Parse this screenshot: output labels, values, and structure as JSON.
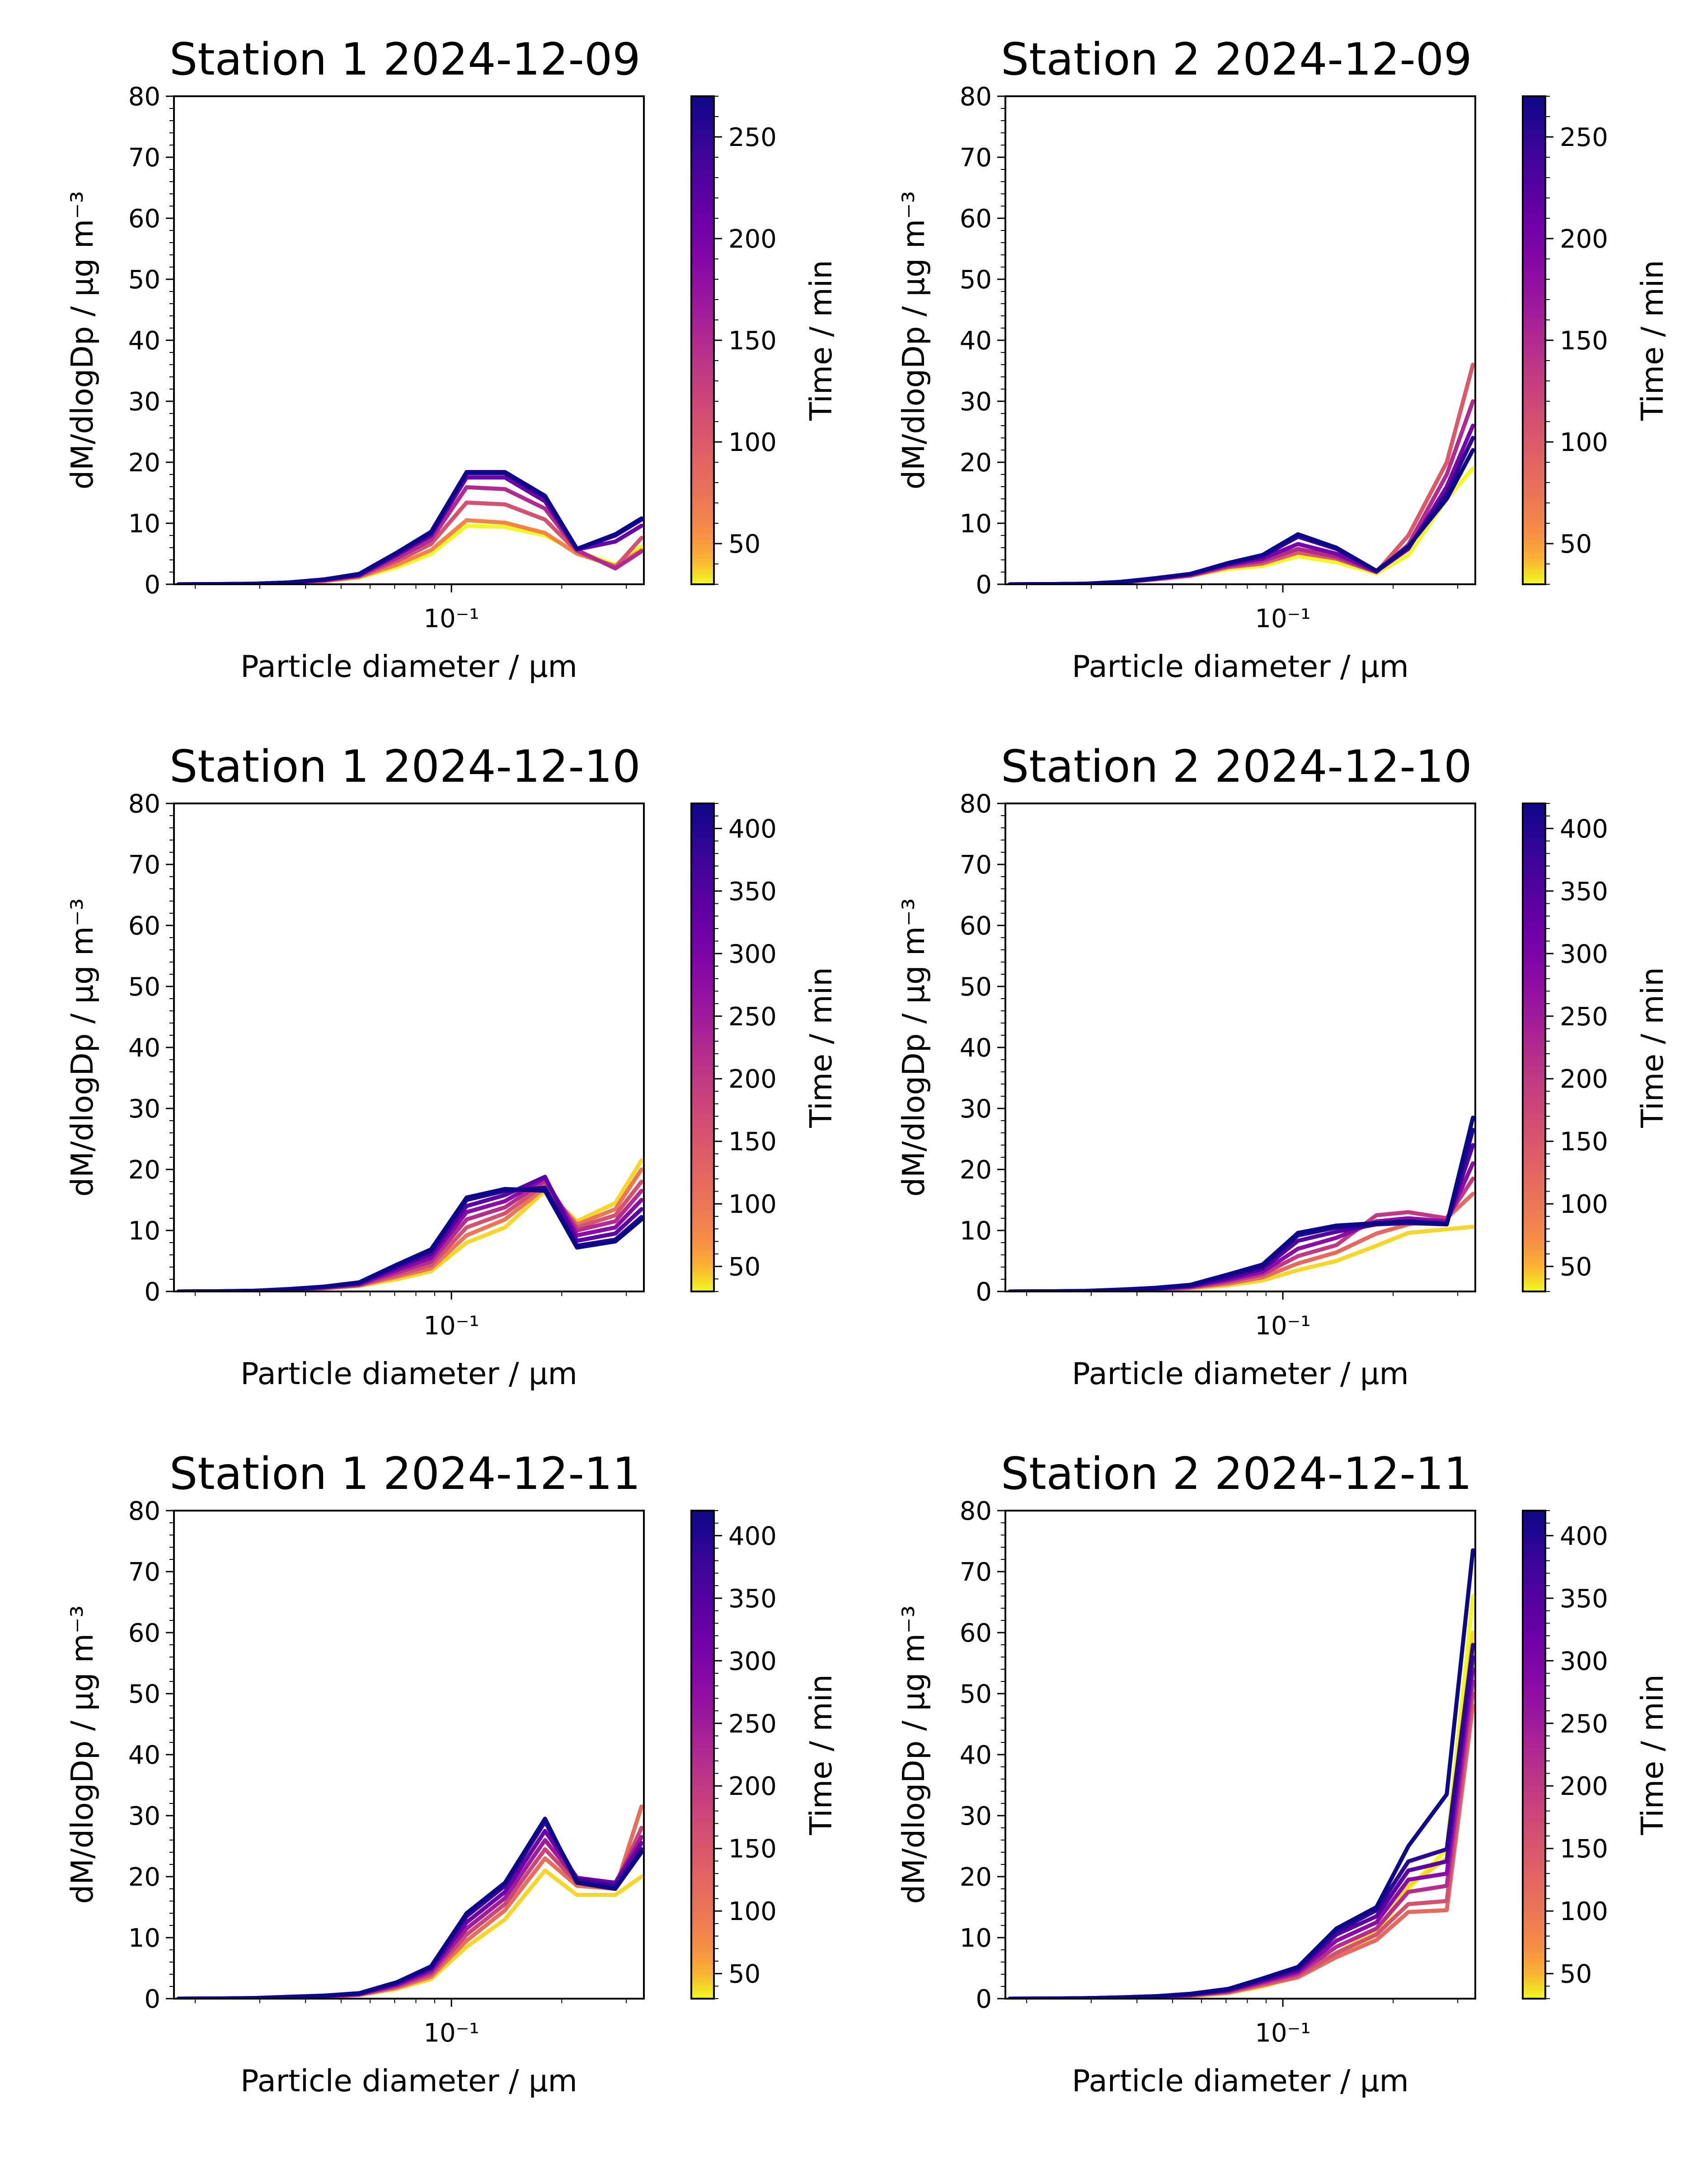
{
  "figure": {
    "background": "#ffffff",
    "colormap": "plasma"
  },
  "chart_data": [
    {
      "type": "line",
      "title": "Station 1 2024-12-09",
      "xlabel": "Particle diameter / μm",
      "ylabel": "dM/dlogDp / μg m⁻³",
      "xscale": "log",
      "xlim": [
        0.0175,
        0.335
      ],
      "ylim": [
        0,
        80
      ],
      "yticks": [
        0,
        10,
        20,
        30,
        40,
        50,
        60,
        70,
        80
      ],
      "xtick_label": "10⁻¹",
      "colorbar": {
        "label": "Time / min",
        "range": [
          30,
          270
        ],
        "ticks": [
          50,
          100,
          150,
          200,
          250
        ]
      },
      "x": [
        0.018,
        0.023,
        0.029,
        0.036,
        0.045,
        0.056,
        0.071,
        0.088,
        0.11,
        0.14,
        0.18,
        0.22,
        0.28,
        0.33
      ],
      "series": [
        {
          "time": 30,
          "values": [
            0,
            0.02,
            0.06,
            0.2,
            0.5,
            1.1,
            2.8,
            5.0,
            9.6,
            9.4,
            8.0,
            5.4,
            3.2,
            6.2
          ]
        },
        {
          "time": 60,
          "values": [
            0,
            0.02,
            0.06,
            0.2,
            0.5,
            1.2,
            3.2,
            5.6,
            10.5,
            10.1,
            8.4,
            5.0,
            3.0,
            5.6
          ]
        },
        {
          "time": 110,
          "values": [
            0,
            0.03,
            0.07,
            0.2,
            0.6,
            1.3,
            3.8,
            6.6,
            13.4,
            13.1,
            10.6,
            5.4,
            2.8,
            7.6
          ]
        },
        {
          "time": 150,
          "values": [
            0,
            0.03,
            0.08,
            0.3,
            0.7,
            1.4,
            4.3,
            7.3,
            15.9,
            15.6,
            12.4,
            5.6,
            2.6,
            5.4
          ]
        },
        {
          "time": 210,
          "values": [
            0,
            0.03,
            0.09,
            0.3,
            0.7,
            1.5,
            4.8,
            8.0,
            17.5,
            17.5,
            13.6,
            5.7,
            7.0,
            9.6
          ]
        },
        {
          "time": 255,
          "values": [
            0,
            0.03,
            0.1,
            0.3,
            0.8,
            1.6,
            5.1,
            8.4,
            18.2,
            18.2,
            14.3,
            5.8,
            8.0,
            10.6
          ]
        },
        {
          "time": 270,
          "values": [
            0,
            0.04,
            0.1,
            0.3,
            0.8,
            1.7,
            5.2,
            8.6,
            18.4,
            18.4,
            14.5,
            5.8,
            8.2,
            10.8
          ]
        }
      ]
    },
    {
      "type": "line",
      "title": "Station 2 2024-12-09",
      "xlabel": "Particle diameter / μm",
      "ylabel": "dM/dlogDp / μg m⁻³",
      "xscale": "log",
      "xlim": [
        0.0175,
        0.335
      ],
      "ylim": [
        0,
        80
      ],
      "yticks": [
        0,
        10,
        20,
        30,
        40,
        50,
        60,
        70,
        80
      ],
      "xtick_label": "10⁻¹",
      "colorbar": {
        "label": "Time / min",
        "range": [
          30,
          270
        ],
        "ticks": [
          50,
          100,
          150,
          200,
          250
        ]
      },
      "x": [
        0.018,
        0.023,
        0.029,
        0.036,
        0.045,
        0.056,
        0.071,
        0.088,
        0.11,
        0.14,
        0.18,
        0.22,
        0.28,
        0.33
      ],
      "series": [
        {
          "time": 30,
          "values": [
            0,
            0.02,
            0.08,
            0.3,
            0.8,
            1.4,
            2.5,
            3.0,
            4.6,
            3.6,
            1.8,
            4.8,
            14.0,
            19.0
          ]
        },
        {
          "time": 100,
          "values": [
            0,
            0.02,
            0.08,
            0.3,
            0.8,
            1.4,
            2.8,
            3.4,
            5.2,
            4.2,
            2.0,
            8.0,
            20.0,
            36.0
          ]
        },
        {
          "time": 150,
          "values": [
            0,
            0.02,
            0.09,
            0.3,
            0.9,
            1.5,
            3.0,
            3.8,
            5.8,
            4.5,
            2.0,
            6.5,
            18.0,
            30.0
          ]
        },
        {
          "time": 200,
          "values": [
            0,
            0.03,
            0.1,
            0.3,
            0.9,
            1.6,
            3.2,
            4.2,
            6.6,
            5.0,
            2.1,
            5.8,
            16.0,
            26.0
          ]
        },
        {
          "time": 250,
          "values": [
            0,
            0.03,
            0.1,
            0.3,
            1.0,
            1.7,
            3.4,
            4.6,
            7.8,
            5.8,
            2.2,
            6.0,
            15.0,
            24.0
          ]
        },
        {
          "time": 270,
          "values": [
            0,
            0.03,
            0.1,
            0.4,
            1.0,
            1.7,
            3.5,
            4.8,
            8.2,
            6.0,
            2.2,
            6.2,
            14.0,
            22.0
          ]
        }
      ]
    },
    {
      "type": "line",
      "title": "Station 1 2024-12-10",
      "xlabel": "Particle diameter / μm",
      "ylabel": "dM/dlogDp / μg m⁻³",
      "xscale": "log",
      "xlim": [
        0.0175,
        0.335
      ],
      "ylim": [
        0,
        80
      ],
      "yticks": [
        0,
        10,
        20,
        30,
        40,
        50,
        60,
        70,
        80
      ],
      "xtick_label": "10⁻¹",
      "colorbar": {
        "label": "Time / min",
        "range": [
          30,
          420
        ],
        "ticks": [
          50,
          100,
          150,
          200,
          250,
          300,
          350,
          400
        ]
      },
      "x": [
        0.018,
        0.023,
        0.029,
        0.036,
        0.045,
        0.056,
        0.071,
        0.088,
        0.11,
        0.14,
        0.18,
        0.22,
        0.28,
        0.33
      ],
      "series": [
        {
          "time": 40,
          "values": [
            0,
            0.02,
            0.06,
            0.2,
            0.5,
            0.9,
            2.0,
            3.3,
            8.0,
            10.5,
            16.5,
            11.5,
            14.5,
            21.5
          ]
        },
        {
          "time": 100,
          "values": [
            0,
            0.02,
            0.07,
            0.2,
            0.5,
            1.0,
            2.4,
            3.8,
            9.2,
            11.8,
            17.0,
            11.0,
            13.5,
            20.0
          ]
        },
        {
          "time": 160,
          "values": [
            0,
            0.02,
            0.08,
            0.2,
            0.6,
            1.0,
            2.7,
            4.3,
            10.5,
            12.8,
            17.6,
            10.5,
            12.5,
            18.0
          ]
        },
        {
          "time": 220,
          "values": [
            0,
            0.03,
            0.09,
            0.3,
            0.6,
            1.1,
            3.1,
            4.9,
            11.8,
            13.8,
            18.2,
            10.0,
            11.5,
            16.5
          ]
        },
        {
          "time": 280,
          "values": [
            0,
            0.03,
            0.1,
            0.3,
            0.7,
            1.2,
            3.5,
            5.5,
            13.0,
            14.8,
            18.6,
            9.2,
            10.5,
            15.0
          ]
        },
        {
          "time": 340,
          "values": [
            0,
            0.03,
            0.11,
            0.3,
            0.7,
            1.3,
            3.9,
            6.1,
            14.0,
            15.8,
            18.8,
            8.3,
            9.5,
            13.5
          ]
        },
        {
          "time": 400,
          "values": [
            0,
            0.03,
            0.12,
            0.3,
            0.8,
            1.4,
            4.2,
            6.6,
            15.0,
            16.5,
            17.0,
            7.5,
            8.5,
            12.2
          ]
        },
        {
          "time": 420,
          "values": [
            0,
            0.04,
            0.12,
            0.4,
            0.8,
            1.5,
            4.4,
            6.9,
            15.4,
            16.8,
            16.5,
            7.2,
            8.2,
            11.8
          ]
        }
      ]
    },
    {
      "type": "line",
      "title": "Station 2 2024-12-10",
      "xlabel": "Particle diameter / μm",
      "ylabel": "dM/dlogDp / μg m⁻³",
      "xscale": "log",
      "xlim": [
        0.0175,
        0.335
      ],
      "ylim": [
        0,
        80
      ],
      "yticks": [
        0,
        10,
        20,
        30,
        40,
        50,
        60,
        70,
        80
      ],
      "xtick_label": "10⁻¹",
      "colorbar": {
        "label": "Time / min",
        "range": [
          30,
          420
        ],
        "ticks": [
          50,
          100,
          150,
          200,
          250,
          300,
          350,
          400
        ]
      },
      "x": [
        0.018,
        0.023,
        0.029,
        0.036,
        0.045,
        0.056,
        0.071,
        0.088,
        0.11,
        0.14,
        0.18,
        0.22,
        0.28,
        0.33
      ],
      "series": [
        {
          "time": 40,
          "values": [
            0,
            0.01,
            0.04,
            0.1,
            0.3,
            0.5,
            1.0,
            1.8,
            3.5,
            5.0,
            7.5,
            9.6,
            10.2,
            10.6
          ]
        },
        {
          "time": 120,
          "values": [
            0,
            0.01,
            0.05,
            0.1,
            0.3,
            0.6,
            1.3,
            2.3,
            4.6,
            6.4,
            9.5,
            11.0,
            12.0,
            16.0
          ]
        },
        {
          "time": 200,
          "values": [
            0,
            0.02,
            0.06,
            0.2,
            0.4,
            0.7,
            1.6,
            2.8,
            5.8,
            7.6,
            12.5,
            13.0,
            12.0,
            18.5
          ]
        },
        {
          "time": 280,
          "values": [
            0,
            0.02,
            0.07,
            0.2,
            0.4,
            0.8,
            1.9,
            3.2,
            7.0,
            8.8,
            11.5,
            12.0,
            11.5,
            21.0
          ]
        },
        {
          "time": 350,
          "values": [
            0,
            0.02,
            0.08,
            0.2,
            0.5,
            0.9,
            2.2,
            3.7,
            8.3,
            9.8,
            11.0,
            11.5,
            11.2,
            24.0
          ]
        },
        {
          "time": 400,
          "values": [
            0,
            0.03,
            0.09,
            0.3,
            0.5,
            1.0,
            2.6,
            4.1,
            9.2,
            10.5,
            11.0,
            11.2,
            11.0,
            26.5
          ]
        },
        {
          "time": 420,
          "values": [
            0,
            0.03,
            0.1,
            0.3,
            0.6,
            1.1,
            2.8,
            4.4,
            9.6,
            10.8,
            11.2,
            11.5,
            11.0,
            28.5
          ]
        }
      ]
    },
    {
      "type": "line",
      "title": "Station 1 2024-12-11",
      "xlabel": "Particle diameter / μm",
      "ylabel": "dM/dlogDp / μg m⁻³",
      "xscale": "log",
      "xlim": [
        0.0175,
        0.335
      ],
      "ylim": [
        0,
        80
      ],
      "yticks": [
        0,
        10,
        20,
        30,
        40,
        50,
        60,
        70,
        80
      ],
      "xtick_label": "10⁻¹",
      "colorbar": {
        "label": "Time / min",
        "range": [
          30,
          420
        ],
        "ticks": [
          50,
          100,
          150,
          200,
          250,
          300,
          350,
          400
        ]
      },
      "x": [
        0.018,
        0.023,
        0.029,
        0.036,
        0.045,
        0.056,
        0.071,
        0.088,
        0.11,
        0.14,
        0.18,
        0.22,
        0.28,
        0.33
      ],
      "series": [
        {
          "time": 40,
          "values": [
            0,
            0.01,
            0.05,
            0.1,
            0.3,
            0.6,
            1.6,
            3.2,
            8.5,
            13.0,
            21.0,
            17.0,
            17.0,
            20.0
          ]
        },
        {
          "time": 110,
          "values": [
            0,
            0.02,
            0.05,
            0.1,
            0.3,
            0.6,
            1.8,
            3.6,
            9.5,
            14.5,
            23.0,
            18.5,
            18.0,
            31.5
          ]
        },
        {
          "time": 180,
          "values": [
            0,
            0.02,
            0.06,
            0.2,
            0.4,
            0.7,
            2.0,
            4.0,
            10.5,
            15.5,
            24.5,
            19.0,
            18.5,
            28.0
          ]
        },
        {
          "time": 250,
          "values": [
            0,
            0.02,
            0.07,
            0.2,
            0.4,
            0.7,
            2.2,
            4.4,
            11.5,
            16.5,
            26.0,
            19.5,
            19.0,
            26.5
          ]
        },
        {
          "time": 320,
          "values": [
            0,
            0.02,
            0.08,
            0.2,
            0.4,
            0.8,
            2.4,
            4.8,
            12.5,
            17.5,
            27.5,
            19.8,
            19.0,
            25.5
          ]
        },
        {
          "time": 380,
          "values": [
            0,
            0.03,
            0.09,
            0.2,
            0.5,
            0.8,
            2.6,
            5.1,
            13.5,
            18.5,
            29.0,
            19.5,
            18.5,
            24.5
          ]
        },
        {
          "time": 420,
          "values": [
            0,
            0.03,
            0.1,
            0.3,
            0.5,
            0.9,
            2.7,
            5.3,
            14.0,
            19.0,
            29.5,
            19.0,
            18.0,
            24.0
          ]
        }
      ]
    },
    {
      "type": "line",
      "title": "Station 2 2024-12-11",
      "xlabel": "Particle diameter / μm",
      "ylabel": "dM/dlogDp / μg m⁻³",
      "xscale": "log",
      "xlim": [
        0.0175,
        0.335
      ],
      "ylim": [
        0,
        80
      ],
      "yticks": [
        0,
        10,
        20,
        30,
        40,
        50,
        60,
        70,
        80
      ],
      "xtick_label": "10⁻¹",
      "colorbar": {
        "label": "Time / min",
        "range": [
          30,
          420
        ],
        "ticks": [
          50,
          100,
          150,
          200,
          250,
          300,
          350,
          400
        ]
      },
      "x": [
        0.018,
        0.023,
        0.029,
        0.036,
        0.045,
        0.056,
        0.071,
        0.088,
        0.11,
        0.14,
        0.18,
        0.22,
        0.28,
        0.33
      ],
      "series": [
        {
          "time": 30,
          "values": [
            0,
            0.01,
            0.03,
            0.1,
            0.2,
            0.4,
            0.9,
            2.0,
            3.6,
            7.0,
            10.5,
            18.0,
            24.5,
            66.0
          ]
        },
        {
          "time": 40,
          "values": [
            0,
            0.01,
            0.03,
            0.1,
            0.2,
            0.4,
            0.9,
            2.0,
            3.8,
            7.5,
            11.0,
            18.5,
            23.0,
            60.0
          ]
        },
        {
          "time": 120,
          "values": [
            0,
            0.01,
            0.04,
            0.1,
            0.2,
            0.5,
            1.0,
            2.2,
            3.5,
            6.8,
            9.6,
            14.2,
            14.5,
            48.0
          ]
        },
        {
          "time": 160,
          "values": [
            0,
            0.01,
            0.04,
            0.1,
            0.3,
            0.5,
            1.1,
            2.4,
            3.8,
            7.5,
            10.5,
            15.5,
            16.0,
            50.0
          ]
        },
        {
          "time": 220,
          "values": [
            0,
            0.02,
            0.05,
            0.2,
            0.3,
            0.6,
            1.2,
            2.6,
            4.1,
            8.5,
            11.5,
            17.5,
            18.5,
            52.0
          ]
        },
        {
          "time": 280,
          "values": [
            0,
            0.02,
            0.06,
            0.2,
            0.3,
            0.6,
            1.3,
            2.8,
            4.4,
            9.5,
            12.5,
            19.5,
            20.5,
            54.0
          ]
        },
        {
          "time": 340,
          "values": [
            0,
            0.02,
            0.07,
            0.2,
            0.4,
            0.7,
            1.4,
            3.0,
            4.7,
            10.5,
            13.5,
            21.0,
            22.5,
            56.0
          ]
        },
        {
          "time": 390,
          "values": [
            0,
            0.02,
            0.08,
            0.2,
            0.4,
            0.7,
            1.5,
            3.2,
            5.0,
            11.0,
            14.5,
            22.5,
            24.5,
            58.0
          ]
        },
        {
          "time": 420,
          "values": [
            0,
            0.02,
            0.08,
            0.2,
            0.4,
            0.8,
            1.6,
            3.3,
            5.2,
            11.5,
            15.0,
            25.0,
            33.5,
            73.5
          ]
        }
      ]
    }
  ]
}
